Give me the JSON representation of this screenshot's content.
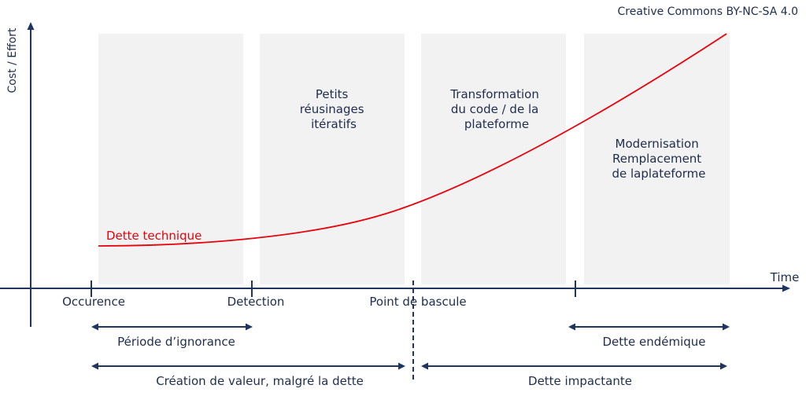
{
  "license": "Creative Commons BY-NC-SA 4.0",
  "axes": {
    "y_label": "Cost / Effort",
    "x_label": "Time"
  },
  "curve": {
    "label": "Dette technique",
    "color": "#e8000b"
  },
  "phases": [
    {
      "lines": []
    },
    {
      "lines": [
        "Petits",
        "réusinages",
        "itératifs"
      ]
    },
    {
      "lines": [
        "Transformation",
        "du code / de la",
        "plateforme"
      ]
    },
    {
      "lines": [
        "Modernisation",
        "Remplacement",
        "de laplateforme"
      ]
    }
  ],
  "milestones": [
    "Occurence",
    "Detection",
    "Point de bascule"
  ],
  "spans": {
    "ignorance": "Période d’ignorance",
    "endemic": "Dette endémique",
    "value_creation": "Création de valeur, malgré la dette",
    "impacting": "Dette impactante"
  },
  "colors": {
    "navy": "#1f3560",
    "curve": "#e8000b",
    "phase_fill": "#f2f2f2"
  }
}
